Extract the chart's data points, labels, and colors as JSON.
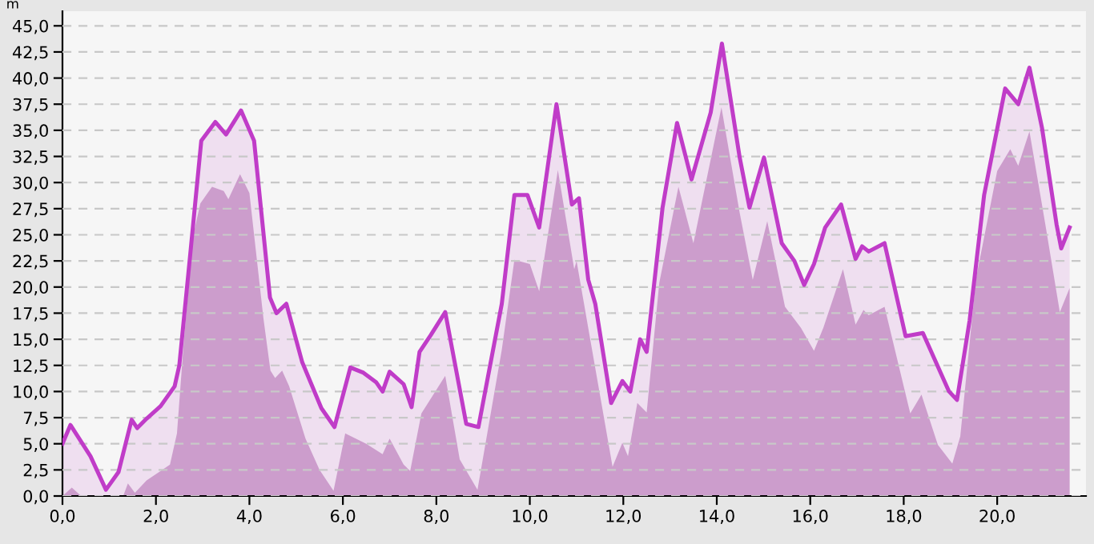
{
  "chart_data": {
    "type": "area",
    "ylabel": "m",
    "xlim": [
      0,
      21.9
    ],
    "ylim": [
      0,
      46.4
    ],
    "xticks": [
      {
        "value": 0,
        "label": "0,0"
      },
      {
        "value": 2,
        "label": "2,0"
      },
      {
        "value": 4,
        "label": "4,0"
      },
      {
        "value": 6,
        "label": "6,0"
      },
      {
        "value": 8,
        "label": "8,0"
      },
      {
        "value": 10,
        "label": "10,0"
      },
      {
        "value": 12,
        "label": "12,0"
      },
      {
        "value": 14,
        "label": "14,0"
      },
      {
        "value": 16,
        "label": "16,0"
      },
      {
        "value": 18,
        "label": "18,0"
      },
      {
        "value": 20,
        "label": "20,0"
      }
    ],
    "yticks": [
      {
        "value": 0,
        "label": "0,0"
      },
      {
        "value": 2.5,
        "label": "2,5"
      },
      {
        "value": 5,
        "label": "5,0"
      },
      {
        "value": 7.5,
        "label": "7,5"
      },
      {
        "value": 10,
        "label": "10,0"
      },
      {
        "value": 12.5,
        "label": "12,5"
      },
      {
        "value": 15,
        "label": "15,0"
      },
      {
        "value": 17.5,
        "label": "17,5"
      },
      {
        "value": 20,
        "label": "20,0"
      },
      {
        "value": 22.5,
        "label": "22,5"
      },
      {
        "value": 25,
        "label": "25,0"
      },
      {
        "value": 27.5,
        "label": "27,5"
      },
      {
        "value": 30,
        "label": "30,0"
      },
      {
        "value": 32.5,
        "label": "32,5"
      },
      {
        "value": 35,
        "label": "35,0"
      },
      {
        "value": 37.5,
        "label": "37,5"
      },
      {
        "value": 40,
        "label": "40,0"
      },
      {
        "value": 42.5,
        "label": "42,5"
      },
      {
        "value": 45,
        "label": "45,0"
      }
    ],
    "grid": "y",
    "line_style": "dashed",
    "series": [
      {
        "color": "#c03cc8",
        "x": [
          0,
          0.17,
          0.6,
          0.93,
          1.2,
          1.48,
          1.6,
          1.8,
          2.1,
          2.4,
          2.5,
          2.72,
          2.97,
          3.27,
          3.5,
          3.82,
          4.1,
          4.44,
          4.58,
          4.79,
          5.13,
          5.54,
          5.82,
          6.16,
          6.44,
          6.71,
          6.85,
          7.0,
          7.3,
          7.47,
          7.64,
          7.88,
          8.19,
          8.64,
          8.9,
          9.4,
          9.67,
          9.95,
          10.2,
          10.57,
          10.9,
          11.05,
          11.25,
          11.4,
          11.74,
          11.98,
          12.15,
          12.36,
          12.5,
          12.84,
          13.15,
          13.46,
          13.87,
          14.11,
          14.49,
          14.7,
          15.01,
          15.39,
          15.66,
          15.87,
          16.08,
          16.32,
          16.66,
          16.97,
          17.11,
          17.25,
          17.59,
          18.04,
          18.41,
          18.97,
          19.14,
          19.41,
          19.72,
          20.17,
          20.45,
          20.69,
          20.96,
          21.27,
          21.37,
          21.55
        ],
        "values": [
          5.0,
          6.8,
          3.8,
          0.6,
          2.3,
          7.3,
          6.5,
          7.4,
          8.6,
          10.5,
          12.5,
          22.5,
          34.0,
          35.8,
          34.6,
          36.9,
          34.0,
          19.0,
          17.5,
          18.4,
          12.8,
          8.4,
          6.6,
          12.3,
          11.8,
          10.9,
          10.0,
          11.9,
          10.7,
          8.5,
          13.8,
          15.4,
          17.6,
          6.9,
          6.6,
          18.4,
          28.8,
          28.8,
          25.7,
          37.5,
          27.9,
          28.5,
          20.7,
          18.4,
          8.9,
          11.0,
          10.0,
          15.0,
          13.8,
          27.6,
          35.7,
          30.3,
          36.7,
          43.3,
          32.4,
          27.6,
          32.4,
          24.2,
          22.5,
          20.2,
          22.2,
          25.7,
          27.9,
          22.7,
          23.9,
          23.4,
          24.2,
          15.3,
          15.6,
          10.0,
          9.2,
          16.8,
          28.8,
          39.0,
          37.5,
          41.0,
          35.2,
          26.0,
          23.7,
          25.7
        ]
      },
      {
        "color": "#c896c8",
        "x": [
          0,
          0.2,
          0.4,
          1.3,
          1.4,
          1.55,
          1.8,
          2.1,
          2.3,
          2.45,
          2.6,
          2.8,
          2.95,
          3.2,
          3.45,
          3.55,
          3.8,
          4.0,
          4.3,
          4.45,
          4.55,
          4.7,
          4.85,
          5.2,
          5.5,
          5.8,
          6.05,
          6.5,
          6.85,
          7.0,
          7.3,
          7.44,
          7.68,
          8.19,
          8.5,
          8.88,
          9.4,
          9.67,
          10.0,
          10.2,
          10.6,
          10.95,
          11.0,
          11.3,
          11.77,
          11.98,
          12.1,
          12.3,
          12.5,
          12.77,
          13.18,
          13.5,
          14.1,
          14.49,
          14.77,
          15.08,
          15.46,
          15.8,
          16.08,
          16.28,
          16.7,
          16.97,
          17.14,
          17.25,
          17.59,
          18.14,
          18.38,
          18.73,
          19.04,
          19.21,
          19.55,
          20.0,
          20.28,
          20.45,
          20.69,
          21.03,
          21.34,
          21.55
        ],
        "values": [
          0,
          0.8,
          0,
          0,
          1.2,
          0.3,
          1.5,
          2.4,
          3.0,
          6,
          15,
          25,
          28,
          29.6,
          29.2,
          28.4,
          30.8,
          29,
          17,
          12,
          11.3,
          12.0,
          10.5,
          5.5,
          2.5,
          0.5,
          6.0,
          5.0,
          4.0,
          5.5,
          3.0,
          2.4,
          7.9,
          11.5,
          3.5,
          0.6,
          14,
          22.6,
          22.2,
          19.6,
          31.2,
          21.7,
          22.5,
          14.8,
          2.8,
          5.1,
          3.8,
          8.9,
          8.0,
          20.4,
          29.6,
          24.2,
          37.2,
          27.1,
          20.7,
          26.3,
          18.1,
          16.1,
          13.9,
          16.1,
          21.7,
          16.4,
          17.8,
          17.3,
          18.1,
          7.9,
          9.7,
          4.9,
          3.1,
          5.7,
          20.9,
          31.1,
          33.2,
          31.6,
          34.9,
          26.0,
          17.6,
          19.9
        ]
      }
    ]
  }
}
